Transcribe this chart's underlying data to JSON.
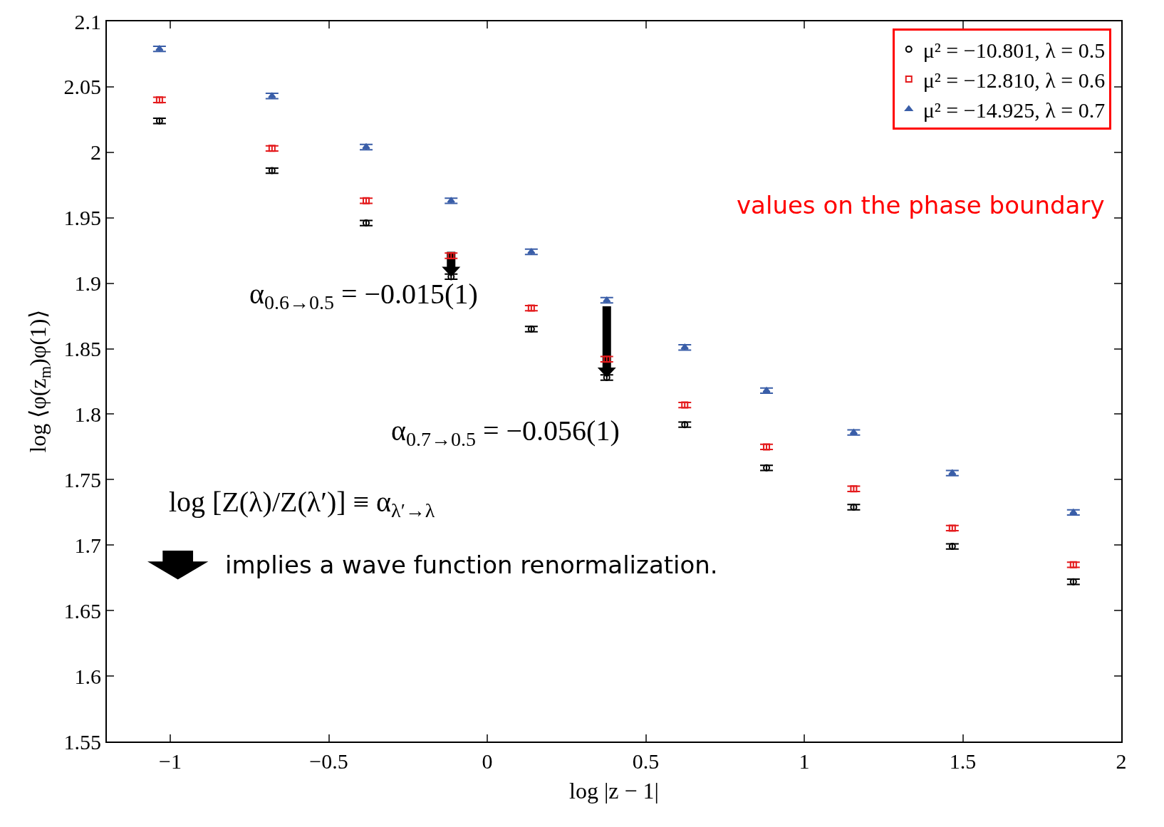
{
  "chart_data": {
    "type": "scatter",
    "xlabel": "log |z − 1|",
    "ylabel": "log ⟨φ(z$_{m}$)φ(1)⟩",
    "x": [
      -1.034,
      -0.679,
      -0.382,
      -0.114,
      0.139,
      0.377,
      0.623,
      0.881,
      1.156,
      1.467,
      1.849
    ],
    "series": [
      {
        "name": "μ² = −10.801, λ = 0.5",
        "color": "#000000",
        "marker": "circle",
        "values": [
          2.024,
          1.986,
          1.946,
          1.905,
          1.865,
          1.828,
          1.792,
          1.759,
          1.729,
          1.699,
          1.672
        ],
        "errors": [
          0.002,
          0.002,
          0.002,
          0.002,
          0.002,
          0.002,
          0.002,
          0.002,
          0.002,
          0.002,
          0.002
        ]
      },
      {
        "name": "μ² = −12.810, λ = 0.6",
        "color": "#e41a1c",
        "marker": "square",
        "values": [
          2.04,
          2.003,
          1.963,
          1.921,
          1.881,
          1.842,
          1.807,
          1.775,
          1.743,
          1.713,
          1.685
        ],
        "errors": [
          0.002,
          0.002,
          0.002,
          0.002,
          0.002,
          0.002,
          0.002,
          0.002,
          0.002,
          0.002,
          0.002
        ]
      },
      {
        "name": "μ² = −14.925, λ = 0.7",
        "color": "#3a5ea8",
        "marker": "triangle",
        "values": [
          2.079,
          2.043,
          2.004,
          1.963,
          1.924,
          1.887,
          1.851,
          1.818,
          1.786,
          1.755,
          1.725
        ],
        "errors": [
          0.002,
          0.002,
          0.002,
          0.002,
          0.002,
          0.002,
          0.002,
          0.002,
          0.002,
          0.002,
          0.002
        ]
      }
    ],
    "xlim": [
      -1.2,
      2
    ],
    "ylim": [
      1.55,
      2.1
    ],
    "xticks": [
      {
        "value": -1,
        "label": "−1"
      },
      {
        "value": -0.5,
        "label": "−0.5"
      },
      0,
      0.5,
      1,
      1.5,
      2
    ],
    "yticks": [
      1.55,
      1.6,
      1.65,
      1.7,
      1.75,
      1.8,
      1.85,
      1.9,
      1.95,
      2,
      2.05,
      2.1
    ],
    "grid": false,
    "legend": "top right",
    "annotations": [
      {
        "text": "α$_{0.6→0.5}$ = −0.015(1)",
        "x": -0.114,
        "y": 1.905
      },
      {
        "text": "α$_{0.7→0.5}$ = −0.056(1)",
        "x": 0.377,
        "y": 1.828
      },
      "values on the phase boundary",
      "log [Z(λ)/Z(λ′)] ≡ α$_{λ′→λ}$",
      "implies a wave function renormalization."
    ]
  }
}
